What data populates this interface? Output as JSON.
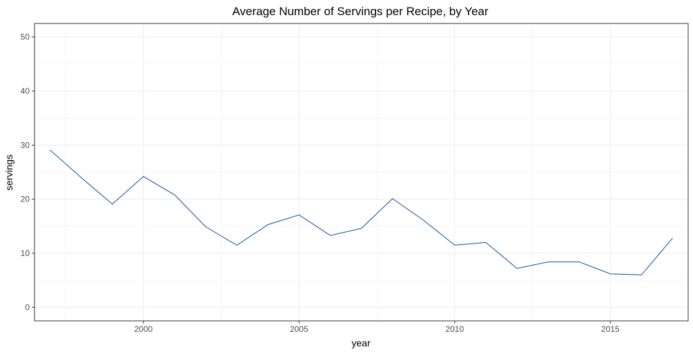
{
  "chart_data": {
    "type": "line",
    "title": "Average Number of Servings per Recipe, by Year",
    "xlabel": "year",
    "ylabel": "servings",
    "xlim": [
      1996.5,
      2017.5
    ],
    "ylim": [
      -2.5,
      52.5
    ],
    "x_ticks": [
      2000,
      2005,
      2010,
      2015
    ],
    "y_ticks": [
      0,
      10,
      20,
      30,
      40,
      50
    ],
    "x_minor": [
      1997.5,
      2002.5,
      2007.5,
      2012.5,
      2017.5
    ],
    "y_minor": [
      5,
      15,
      25,
      35,
      45
    ],
    "grid": true,
    "legend": "none",
    "line_color": "#0b4ea2",
    "series": [
      {
        "x": [
          1997,
          1998,
          1999,
          2000,
          2001,
          2002,
          2003,
          2004,
          2005,
          2006,
          2007,
          2008,
          2009,
          2010,
          2011,
          2012,
          2013,
          2014,
          2015,
          2016,
          2017
        ],
        "values": [
          29.1,
          24.0,
          19.1,
          24.2,
          20.8,
          14.9,
          11.5,
          15.3,
          17.1,
          13.3,
          14.6,
          20.1,
          16.1,
          11.5,
          12.0,
          7.2,
          8.4,
          8.4,
          6.2,
          6.0,
          12.8
        ]
      }
    ]
  }
}
